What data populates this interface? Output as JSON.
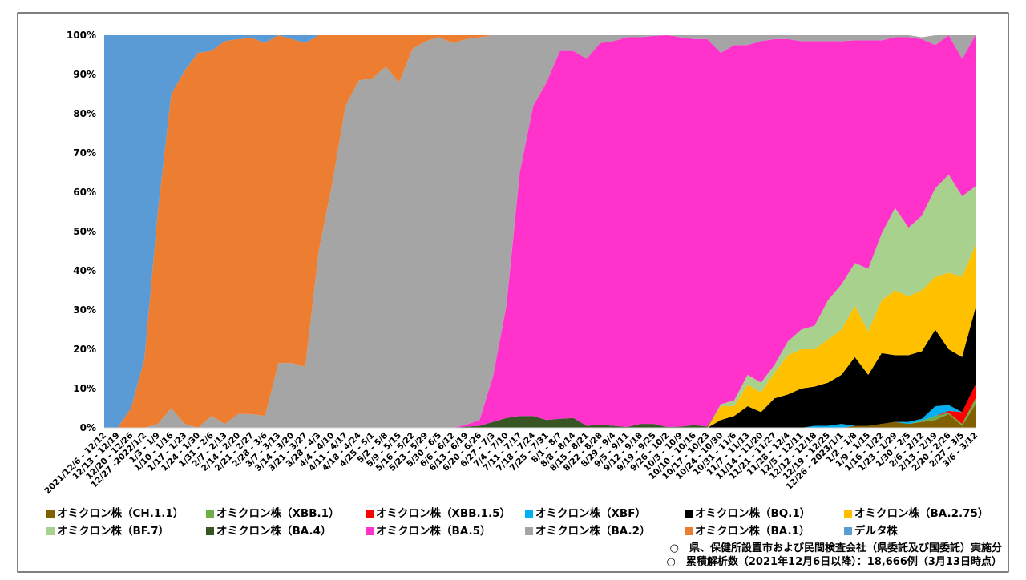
{
  "chart_data": {
    "type": "stacked-area-100",
    "categories": [
      "2021/12/6 - 12/12",
      "12/13 - 12/19",
      "12/20 - 12/26",
      "12/27 -2022/1/2",
      "1/3 - 1/9",
      "1/10 - 1/16",
      "1/17 - 1/23",
      "1/24 - 1/30",
      "1/31 - 2/6",
      "2/7 - 2/13",
      "2/14 - 2/20",
      "2/21 - 2/27",
      "2/28 - 3/6",
      "3/7 - 3/13",
      "3/14 - 3/20",
      "3/21 - 3/27",
      "3/28 - 4/3",
      "4/4 - 4/10",
      "4/11 - 4/17",
      "4/18 - 4/24",
      "4/25 - 5/1",
      "5/2 - 5/8",
      "5/9 - 5/15",
      "5/16 - 5/22",
      "5/23 - 5/29",
      "5/30 - 6/5",
      "6/6 - 6/12",
      "6/13 - 6/19",
      "6/20 - 6/26",
      "6/27 - 7/3",
      "7/4 - 7/10",
      "7/11 - 7/17",
      "7/18 - 7/24",
      "7/25 - 7/31",
      "8/1 - 8/7",
      "8/8 - 8/14",
      "8/15 - 8/21",
      "8/22 - 8/28",
      "8/29 - 9/4",
      "9/5 - 9/11",
      "9/12 - 9/18",
      "9/19 - 9/25",
      "9/26 - 10/2",
      "10/3 - 10/9",
      "10/10 - 10/16",
      "10/17 - 10/23",
      "10/24 - 10/30",
      "10/31 - 11/6",
      "11/7 - 11/13",
      "11/14 - 11/20",
      "11/21 - 11/27",
      "11/28 - 12/4",
      "12/5 - 12/11",
      "12/12 - 12/18",
      "12/19 - 12/25",
      "12/26 - 2023/1/1",
      "1/2 - 1/8",
      "1/9 - 1/15",
      "1/16 - 1/22",
      "1/23 - 1/29",
      "1/30 - 2/5",
      "2/6 - 2/12",
      "2/13 - 2/19",
      "2/20 - 2/26",
      "2/27 - 3/5",
      "3/6 - 3/12"
    ],
    "series": [
      {
        "name": "オミクロン株（CH.1.1）",
        "color": "#806000",
        "values": [
          0,
          0,
          0,
          0,
          0,
          0,
          0,
          0,
          0,
          0,
          0,
          0,
          0,
          0,
          0,
          0,
          0,
          0,
          0,
          0,
          0,
          0,
          0,
          0,
          0,
          0,
          0,
          0,
          0,
          0,
          0,
          0,
          0,
          0,
          0,
          0,
          0,
          0,
          0,
          0,
          0,
          0,
          0,
          0,
          0,
          0,
          0,
          0,
          0,
          0,
          0,
          0,
          0,
          0,
          0,
          0,
          0.5,
          0.5,
          1,
          1.5,
          1,
          1.5,
          2,
          3.5,
          0.5,
          6
        ]
      },
      {
        "name": "オミクロン株（XBB.1）",
        "color": "#70ad47",
        "values": [
          0,
          0,
          0,
          0,
          0,
          0,
          0,
          0,
          0,
          0,
          0,
          0,
          0,
          0,
          0,
          0,
          0,
          0,
          0,
          0,
          0,
          0,
          0,
          0,
          0,
          0,
          0,
          0,
          0,
          0,
          0,
          0,
          0,
          0,
          0,
          0,
          0,
          0,
          0,
          0,
          0,
          0,
          0,
          0,
          0,
          0,
          0,
          0,
          0,
          0,
          0,
          0,
          0,
          0,
          0,
          0,
          0,
          0,
          0,
          0,
          0,
          0.3,
          1,
          0.3,
          0.5,
          1.5
        ]
      },
      {
        "name": "オミクロン株（XBB.1.5）",
        "color": "#ff0000",
        "values": [
          0,
          0,
          0,
          0,
          0,
          0,
          0,
          0,
          0,
          0,
          0,
          0,
          0,
          0,
          0,
          0,
          0,
          0,
          0,
          0,
          0,
          0,
          0,
          0,
          0,
          0,
          0,
          0,
          0,
          0,
          0,
          0,
          0,
          0,
          0,
          0,
          0,
          0,
          0,
          0,
          0,
          0,
          0,
          0,
          0,
          0,
          0,
          0,
          0,
          0,
          0,
          0,
          0,
          0,
          0,
          0,
          0,
          0,
          0,
          0,
          0,
          0,
          0,
          0.5,
          3,
          3.5
        ]
      },
      {
        "name": "オミクロン株（XBF）",
        "color": "#00b0f0",
        "values": [
          0,
          0,
          0,
          0,
          0,
          0,
          0,
          0,
          0,
          0,
          0,
          0,
          0,
          0,
          0,
          0,
          0,
          0,
          0,
          0,
          0,
          0,
          0,
          0,
          0,
          0,
          0,
          0,
          0,
          0,
          0,
          0,
          0,
          0,
          0,
          0,
          0,
          0,
          0,
          0,
          0,
          0,
          0,
          0,
          0,
          0,
          0,
          0,
          0,
          0,
          0,
          0,
          0,
          0.5,
          0.5,
          1,
          0,
          0,
          0,
          0,
          0.5,
          0.5,
          2.5,
          1.5,
          0,
          0
        ]
      },
      {
        "name": "オミクロン株（BQ.1）",
        "color": "#000000",
        "values": [
          0,
          0,
          0,
          0,
          0,
          0,
          0,
          0,
          0,
          0,
          0,
          0,
          0,
          0,
          0,
          0,
          0,
          0,
          0,
          0,
          0,
          0,
          0,
          0,
          0,
          0,
          0,
          0,
          0,
          0,
          0,
          0,
          0,
          0,
          0,
          0,
          0,
          0,
          0,
          0,
          0,
          0,
          0,
          0,
          0,
          0,
          2,
          3,
          5.5,
          4,
          7.5,
          8.5,
          10,
          10,
          11,
          12.5,
          17.5,
          13,
          18,
          17,
          17,
          17.2,
          19.5,
          14.2,
          14,
          19.5
        ]
      },
      {
        "name": "オミクロン株（BA.2.75）",
        "color": "#ffc000",
        "values": [
          0,
          0,
          0,
          0,
          0,
          0,
          0,
          0,
          0,
          0,
          0,
          0,
          0,
          0,
          0,
          0,
          0,
          0,
          0,
          0,
          0,
          0,
          0,
          0,
          0,
          0,
          0,
          0,
          0,
          0,
          0,
          0,
          0,
          0,
          0,
          0,
          0,
          0,
          0,
          0,
          0,
          0,
          0,
          0,
          0,
          0,
          3.5,
          2.5,
          5.5,
          5,
          6.5,
          10,
          10,
          9.5,
          11,
          11.5,
          13,
          11,
          13.5,
          16.5,
          15,
          15.5,
          13.5,
          19.5,
          20.5,
          16
        ]
      },
      {
        "name": "オミクロン株（BF.7）",
        "color": "#a9d18e",
        "values": [
          0,
          0,
          0,
          0,
          0,
          0,
          0,
          0,
          0,
          0,
          0,
          0,
          0,
          0,
          0,
          0,
          0,
          0,
          0,
          0,
          0,
          0,
          0,
          0,
          0,
          0,
          0,
          0,
          0,
          0,
          0,
          0,
          0,
          0,
          0,
          0,
          0,
          0,
          0,
          0,
          0,
          0,
          0,
          0,
          0,
          0,
          0.5,
          1.5,
          2.5,
          2.5,
          2,
          3.5,
          5,
          6,
          10,
          11.5,
          11,
          16,
          17,
          21,
          17.5,
          19,
          22.5,
          25,
          20.5,
          15
        ]
      },
      {
        "name": "オミクロン株（BA.4）",
        "color": "#375623",
        "values": [
          0,
          0,
          0,
          0,
          0,
          0,
          0,
          0,
          0,
          0,
          0,
          0,
          0,
          0,
          0,
          0,
          0,
          0,
          0,
          0,
          0,
          0,
          0,
          0,
          0,
          0,
          0,
          0.3,
          0.5,
          1.5,
          2.5,
          3,
          3,
          2,
          2.3,
          2.5,
          0.5,
          0.8,
          0.5,
          0.2,
          1,
          1,
          0.2,
          0.3,
          0.7,
          0.3,
          0,
          0,
          0,
          0,
          0,
          0,
          0,
          0,
          0,
          0,
          0,
          0,
          0,
          0,
          0,
          0,
          0,
          0,
          0,
          0
        ]
      },
      {
        "name": "オミクロン株（BA.5）",
        "color": "#ff33cc",
        "values": [
          0,
          0,
          0,
          0,
          0,
          0,
          0,
          0,
          0,
          0,
          0,
          0,
          0,
          0,
          0,
          0,
          0,
          0,
          0,
          0,
          0,
          0,
          0,
          0,
          0,
          0,
          0,
          0.5,
          1.5,
          11.5,
          28.5,
          62,
          79,
          86,
          93.7,
          93.5,
          93.5,
          97.2,
          98,
          99.3,
          98.5,
          98.8,
          99.8,
          99.2,
          98.3,
          98.7,
          89.5,
          90.5,
          84,
          87,
          83,
          77,
          73.5,
          72.5,
          66,
          62,
          56.7,
          58.2,
          49.2,
          43.5,
          48.5,
          45,
          36.5,
          35.5,
          35,
          38.5
        ]
      },
      {
        "name": "オミクロン株（BA.2）",
        "color": "#a5a5a5",
        "values": [
          0,
          0,
          0,
          0,
          1,
          5,
          1,
          0,
          3,
          1,
          3.5,
          3.5,
          3,
          16.5,
          16.5,
          15.5,
          45,
          62,
          82,
          88.5,
          89,
          92,
          88,
          96.5,
          98.5,
          99.5,
          98,
          98.2,
          97.5,
          87,
          69,
          35,
          18,
          12,
          4,
          4,
          6,
          2,
          1.5,
          0.5,
          0.5,
          0.2,
          0,
          0.5,
          1,
          1,
          4.5,
          2.5,
          2.5,
          1.5,
          1,
          1,
          1.5,
          1.5,
          1.5,
          1.5,
          1.3,
          1.3,
          1.3,
          0.5,
          0.5,
          0.5,
          2.5,
          0,
          6,
          0
        ]
      },
      {
        "name": "オミクロン株（BA.1）",
        "color": "#ed7d31",
        "values": [
          0,
          0,
          5,
          17.5,
          54,
          80,
          90,
          95.5,
          93,
          97.5,
          95.5,
          95.8,
          95,
          83.5,
          82.5,
          82.5,
          55,
          38,
          18,
          11.5,
          11,
          8,
          12,
          3.5,
          1.5,
          0.5,
          2,
          1,
          0.5,
          0,
          0,
          0,
          0,
          0,
          0,
          0,
          0,
          0,
          0,
          0,
          0,
          0,
          0,
          0,
          0,
          0,
          0,
          0,
          0,
          0,
          0,
          0,
          0,
          0,
          0,
          0,
          0,
          0,
          0,
          0,
          0,
          0,
          0,
          0,
          0,
          0
        ]
      },
      {
        "name": "デルタ株",
        "color": "#5b9bd5",
        "values": [
          100,
          100,
          95,
          82.5,
          45,
          15,
          9,
          4.5,
          4,
          1.5,
          1,
          0.7,
          2,
          0,
          1,
          2,
          0,
          0,
          0,
          0,
          0,
          0,
          0,
          0,
          0,
          0,
          0,
          0,
          0,
          0,
          0,
          0,
          0,
          0,
          0,
          0,
          0,
          0,
          0,
          0,
          0,
          0,
          0,
          0,
          0,
          0,
          0,
          0,
          0,
          0,
          0,
          0,
          0,
          0,
          0,
          0,
          0,
          0,
          0,
          0,
          0,
          0,
          0,
          0,
          0,
          0
        ]
      }
    ],
    "ylim": [
      0,
      100
    ],
    "yticks": [
      {
        "value": 0,
        "label": "0%"
      },
      {
        "value": 10,
        "label": "10%"
      },
      {
        "value": 20,
        "label": "20%"
      },
      {
        "value": 30,
        "label": "30%"
      },
      {
        "value": 40,
        "label": "40%"
      },
      {
        "value": 50,
        "label": "50%"
      },
      {
        "value": 60,
        "label": "60%"
      },
      {
        "value": 70,
        "label": "70%"
      },
      {
        "value": 80,
        "label": "80%"
      },
      {
        "value": 90,
        "label": "90%"
      },
      {
        "value": 100,
        "label": "100%"
      }
    ],
    "notes": [
      "○　県、保健所設置市および民間検査会社（県委託及び国委託）実施分",
      "○　累積解析数（2021年12月6日以降）：18,666例（3月13日時点）"
    ]
  }
}
